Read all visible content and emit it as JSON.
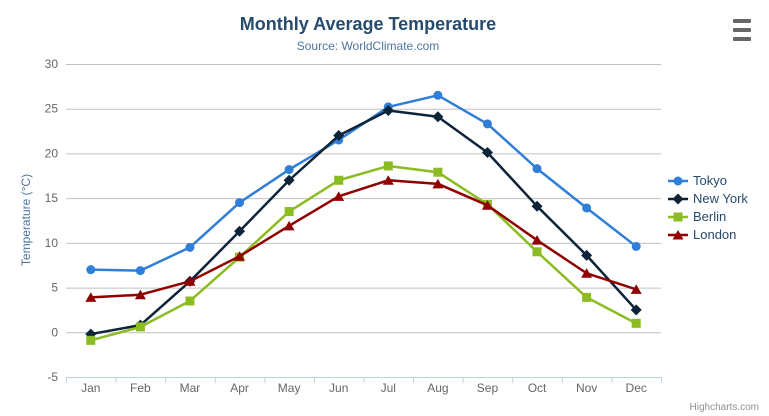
{
  "chart_data": {
    "type": "line",
    "title": "Monthly Average Temperature",
    "subtitle": "Source: WorldClimate.com",
    "xlabel": "",
    "ylabel": "Temperature (°C)",
    "ylim": [
      -5,
      30
    ],
    "ytick_interval": 5,
    "yticks": [
      -5,
      0,
      5,
      10,
      15,
      20,
      25,
      30
    ],
    "grid": true,
    "legend_position": "right",
    "categories": [
      "Jan",
      "Feb",
      "Mar",
      "Apr",
      "May",
      "Jun",
      "Jul",
      "Aug",
      "Sep",
      "Oct",
      "Nov",
      "Dec"
    ],
    "series": [
      {
        "name": "Tokyo",
        "color": "#2f7ed8",
        "marker": "circle",
        "values": [
          7.0,
          6.9,
          9.5,
          14.5,
          18.2,
          21.5,
          25.2,
          26.5,
          23.3,
          18.3,
          13.9,
          9.6
        ]
      },
      {
        "name": "New York",
        "color": "#0d233a",
        "marker": "diamond",
        "values": [
          -0.2,
          0.8,
          5.7,
          11.3,
          17.0,
          22.0,
          24.8,
          24.1,
          20.1,
          14.1,
          8.6,
          2.5
        ]
      },
      {
        "name": "Berlin",
        "color": "#8bbc21",
        "marker": "square",
        "values": [
          -0.9,
          0.6,
          3.5,
          8.4,
          13.5,
          17.0,
          18.6,
          17.9,
          14.3,
          9.0,
          3.9,
          1.0
        ]
      },
      {
        "name": "London",
        "color": "#910000",
        "marker": "triangle",
        "values": [
          3.9,
          4.2,
          5.7,
          8.5,
          11.9,
          15.2,
          17.0,
          16.6,
          14.2,
          10.3,
          6.6,
          4.8
        ]
      }
    ]
  },
  "credits": {
    "label": "Highcharts.com"
  },
  "export_menu": {
    "icon": "hamburger-icon"
  },
  "colors": {
    "title": "#274b6d",
    "subtitle": "#4d759e",
    "axis_labels": "#666666",
    "grid_line": "#c0c0c0",
    "axis_line": "#c0d0e0",
    "legend_text": "#274b6d",
    "credits_text": "#909090"
  }
}
